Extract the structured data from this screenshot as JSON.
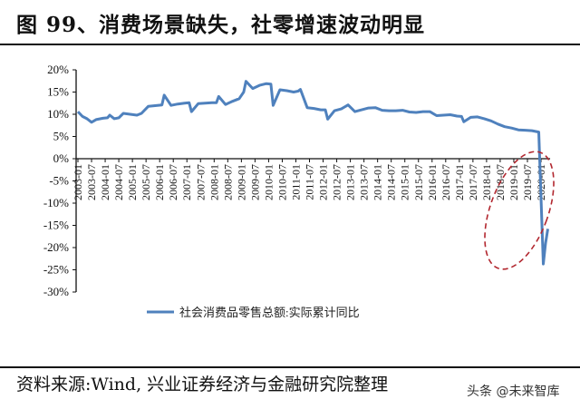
{
  "header": {
    "title": "图 99、消费场景缺失，社零增速波动明显"
  },
  "footer": {
    "source": "资料来源:Wind, 兴业证券经济与金融研究院整理",
    "watermark": "头条 @未来智库"
  },
  "colors": {
    "line": "#4f81bd",
    "ellipse": "#b2272f",
    "axis": "#111111"
  },
  "chart_data": {
    "type": "line",
    "title": "图 99、消费场景缺失，社零增速波动明显",
    "xlabel": "",
    "ylabel": "",
    "ylim": [
      -30,
      20
    ],
    "yticks": [
      "20%",
      "15%",
      "10%",
      "5%",
      "0%",
      "-5%",
      "-10%",
      "-15%",
      "-20%",
      "-25%",
      "-30%"
    ],
    "xticks": [
      "2003-01",
      "2003-07",
      "2004-01",
      "2004-07",
      "2005-01",
      "2005-07",
      "2006-01",
      "2006-07",
      "2007-01",
      "2007-07",
      "2008-01",
      "2008-07",
      "2009-01",
      "2009-07",
      "2010-01",
      "2010-07",
      "2011-01",
      "2011-07",
      "2012-01",
      "2012-07",
      "2013-01",
      "2013-07",
      "2014-01",
      "2014-07",
      "2015-01",
      "2015-07",
      "2016-01",
      "2016-07",
      "2017-01",
      "2017-07",
      "2018-01",
      "2018-07",
      "2019-01",
      "2019-07",
      "2020-01"
    ],
    "legend": {
      "position": "bottom",
      "entries": [
        "社会消费品零售总额:实际累计同比"
      ]
    },
    "annotation": "red dashed ellipse highlighting 2019-2020 decline",
    "series": [
      {
        "name": "社会消费品零售总额:实际累计同比",
        "x": [
          "2003-01",
          "2003-03",
          "2003-05",
          "2003-07",
          "2003-09",
          "2003-12",
          "2004-02",
          "2004-03",
          "2004-05",
          "2004-07",
          "2004-09",
          "2004-12",
          "2005-03",
          "2005-05",
          "2005-08",
          "2005-12",
          "2006-02",
          "2006-03",
          "2006-06",
          "2006-09",
          "2006-12",
          "2007-02",
          "2007-03",
          "2007-06",
          "2007-09",
          "2007-12",
          "2008-02",
          "2008-03",
          "2008-06",
          "2008-09",
          "2008-12",
          "2009-02",
          "2009-03",
          "2009-06",
          "2009-09",
          "2009-12",
          "2010-02",
          "2010-03",
          "2010-06",
          "2010-09",
          "2010-12",
          "2011-02",
          "2011-03",
          "2011-06",
          "2011-09",
          "2011-12",
          "2012-02",
          "2012-03",
          "2012-06",
          "2012-09",
          "2012-12",
          "2013-03",
          "2013-06",
          "2013-09",
          "2013-12",
          "2014-03",
          "2014-06",
          "2014-09",
          "2014-12",
          "2015-03",
          "2015-06",
          "2015-09",
          "2015-12",
          "2016-03",
          "2016-06",
          "2016-09",
          "2016-12",
          "2017-02",
          "2017-03",
          "2017-06",
          "2017-09",
          "2017-12",
          "2018-03",
          "2018-06",
          "2018-09",
          "2018-12",
          "2019-03",
          "2019-06",
          "2019-09",
          "2019-12",
          "2020-02",
          "2020-03",
          "2020-04"
        ],
        "values": [
          10.6,
          9.5,
          9.0,
          8.2,
          8.8,
          9.1,
          9.2,
          9.8,
          9.0,
          9.2,
          10.2,
          10.0,
          9.8,
          10.2,
          11.8,
          12.0,
          12.1,
          14.3,
          12.0,
          12.3,
          12.5,
          12.6,
          10.6,
          12.4,
          12.5,
          12.6,
          12.6,
          14.0,
          12.2,
          12.9,
          13.5,
          15.0,
          17.4,
          15.8,
          16.5,
          16.9,
          16.8,
          12.0,
          15.5,
          15.3,
          15.0,
          15.2,
          15.6,
          11.5,
          11.3,
          11.0,
          11.0,
          8.9,
          10.8,
          11.2,
          12.1,
          10.6,
          11.0,
          11.4,
          11.5,
          10.9,
          10.8,
          10.8,
          10.9,
          10.5,
          10.4,
          10.6,
          10.6,
          9.7,
          9.8,
          9.9,
          9.6,
          9.5,
          8.3,
          9.3,
          9.4,
          9.0,
          8.5,
          7.8,
          7.2,
          6.9,
          6.5,
          6.4,
          6.3,
          6.0,
          -23.7,
          -19.0,
          -15.8
        ]
      }
    ]
  }
}
